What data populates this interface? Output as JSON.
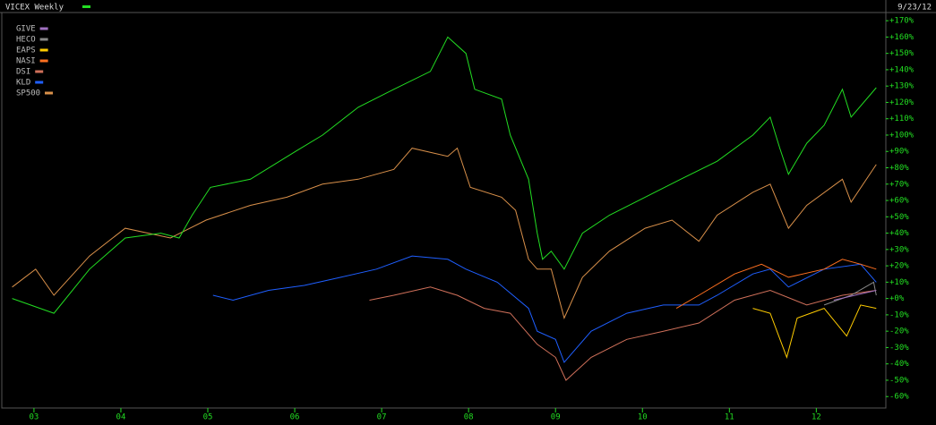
{
  "chart_data": {
    "type": "line",
    "title": "VICEX Weekly",
    "date": "9/23/12",
    "xlim": [
      2002.63,
      2012.8
    ],
    "xticks": [
      {
        "value": 2003,
        "label": "03"
      },
      {
        "value": 2004,
        "label": "04"
      },
      {
        "value": 2005,
        "label": "05"
      },
      {
        "value": 2006,
        "label": "06"
      },
      {
        "value": 2007,
        "label": "07"
      },
      {
        "value": 2008,
        "label": "08"
      },
      {
        "value": 2009,
        "label": "09"
      },
      {
        "value": 2010,
        "label": "10"
      },
      {
        "value": 2011,
        "label": "11"
      },
      {
        "value": 2012,
        "label": "12"
      }
    ],
    "ylim": [
      -67,
      175
    ],
    "yticks": [
      {
        "value": 170,
        "label": "+170%"
      },
      {
        "value": 160,
        "label": "+160%"
      },
      {
        "value": 150,
        "label": "+150%"
      },
      {
        "value": 140,
        "label": "+140%"
      },
      {
        "value": 130,
        "label": "+130%"
      },
      {
        "value": 120,
        "label": "+120%"
      },
      {
        "value": 110,
        "label": "+110%"
      },
      {
        "value": 100,
        "label": "+100%"
      },
      {
        "value": 90,
        "label": "+90%"
      },
      {
        "value": 80,
        "label": "+80%"
      },
      {
        "value": 70,
        "label": "+70%"
      },
      {
        "value": 60,
        "label": "+60%"
      },
      {
        "value": 50,
        "label": "+50%"
      },
      {
        "value": 40,
        "label": "+40%"
      },
      {
        "value": 30,
        "label": "+30%"
      },
      {
        "value": 20,
        "label": "+20%"
      },
      {
        "value": 10,
        "label": "+10%"
      },
      {
        "value": 0,
        "label": "+0%"
      },
      {
        "value": -10,
        "label": "-10%"
      },
      {
        "value": -20,
        "label": "-20%"
      },
      {
        "value": -30,
        "label": "-30%"
      },
      {
        "value": -40,
        "label": "-40%"
      },
      {
        "value": -50,
        "label": "-50%"
      },
      {
        "value": -60,
        "label": "-60%"
      }
    ],
    "series": [
      {
        "name": "VICEX Weekly",
        "color": "#22dd22",
        "x": [
          2002.75,
          2003.23,
          2003.64,
          2004.05,
          2004.46,
          2004.67,
          2004.82,
          2005.03,
          2005.49,
          2006.01,
          2006.32,
          2006.73,
          2007.14,
          2007.56,
          2007.76,
          2007.97,
          2008.07,
          2008.38,
          2008.48,
          2008.69,
          2008.79,
          2008.85,
          2008.95,
          2009.1,
          2009.31,
          2009.62,
          2010.03,
          2010.44,
          2010.86,
          2011.27,
          2011.47,
          2011.58,
          2011.68,
          2011.89,
          2012.09,
          2012.3,
          2012.4,
          2012.69
        ],
        "values": [
          0,
          -9,
          18,
          37,
          40,
          37,
          51,
          68,
          73,
          90,
          100,
          117,
          128,
          139,
          160,
          150,
          128,
          122,
          100,
          73,
          40,
          24,
          29,
          18,
          40,
          51,
          62,
          73,
          84,
          100,
          111,
          92,
          76,
          95,
          106,
          128,
          111,
          129
        ]
      },
      {
        "name": "GIVE",
        "color": "#a070c0",
        "x": [
          2012.2,
          2012.69
        ],
        "values": [
          -1,
          5
        ]
      },
      {
        "name": "HECO",
        "color": "#888888",
        "x": [
          2012.09,
          2012.4,
          2012.66,
          2012.69
        ],
        "values": [
          -4,
          2,
          10,
          2
        ]
      },
      {
        "name": "EAPS",
        "color": "#ffcc00",
        "x": [
          2011.27,
          2011.47,
          2011.66,
          2011.78,
          2012.09,
          2012.35,
          2012.51,
          2012.69
        ],
        "values": [
          -6,
          -9,
          -36,
          -12,
          -6,
          -23,
          -4,
          -6
        ]
      },
      {
        "name": "NASI",
        "color": "#ff7020",
        "x": [
          2010.39,
          2010.65,
          2011.06,
          2011.37,
          2011.68,
          2012.09,
          2012.3,
          2012.51,
          2012.69
        ],
        "values": [
          -6,
          2,
          15,
          21,
          13,
          18,
          24,
          21,
          18
        ]
      },
      {
        "name": "DSI",
        "color": "#d0705a",
        "x": [
          2006.86,
          2007.14,
          2007.56,
          2007.87,
          2008.18,
          2008.48,
          2008.79,
          2009.0,
          2009.12,
          2009.41,
          2009.82,
          2010.24,
          2010.65,
          2011.06,
          2011.47,
          2011.89,
          2012.3,
          2012.69
        ],
        "values": [
          -1,
          2,
          7,
          2,
          -6,
          -9,
          -28,
          -36,
          -50,
          -36,
          -25,
          -20,
          -15,
          -1,
          5,
          -4,
          2,
          5
        ]
      },
      {
        "name": "KLD",
        "color": "#1f5fff",
        "x": [
          2005.06,
          2005.29,
          2005.7,
          2006.11,
          2006.53,
          2006.94,
          2007.35,
          2007.76,
          2007.97,
          2008.33,
          2008.69,
          2008.79,
          2009.0,
          2009.1,
          2009.41,
          2009.82,
          2010.24,
          2010.65,
          2010.86,
          2011.27,
          2011.47,
          2011.68,
          2012.09,
          2012.51,
          2012.69
        ],
        "values": [
          2,
          -1,
          5,
          8,
          13,
          18,
          26,
          24,
          18,
          10,
          -6,
          -20,
          -25,
          -39,
          -20,
          -9,
          -4,
          -4,
          2,
          15,
          18,
          7,
          18,
          21,
          10
        ]
      },
      {
        "name": "SP500",
        "color": "#d9904a",
        "x": [
          2002.75,
          2003.02,
          2003.23,
          2003.64,
          2004.05,
          2004.57,
          2004.98,
          2005.49,
          2005.91,
          2006.32,
          2006.73,
          2007.14,
          2007.35,
          2007.76,
          2007.87,
          2008.02,
          2008.38,
          2008.54,
          2008.69,
          2008.79,
          2008.95,
          2009.1,
          2009.31,
          2009.62,
          2010.03,
          2010.34,
          2010.65,
          2010.86,
          2011.27,
          2011.47,
          2011.68,
          2011.89,
          2012.3,
          2012.4,
          2012.69
        ],
        "values": [
          7,
          18,
          2,
          26,
          43,
          37,
          48,
          57,
          62,
          70,
          73,
          79,
          92,
          87,
          92,
          68,
          62,
          54,
          24,
          18,
          18,
          -12,
          13,
          29,
          43,
          48,
          35,
          51,
          65,
          70,
          43,
          57,
          73,
          59,
          82
        ]
      }
    ]
  }
}
